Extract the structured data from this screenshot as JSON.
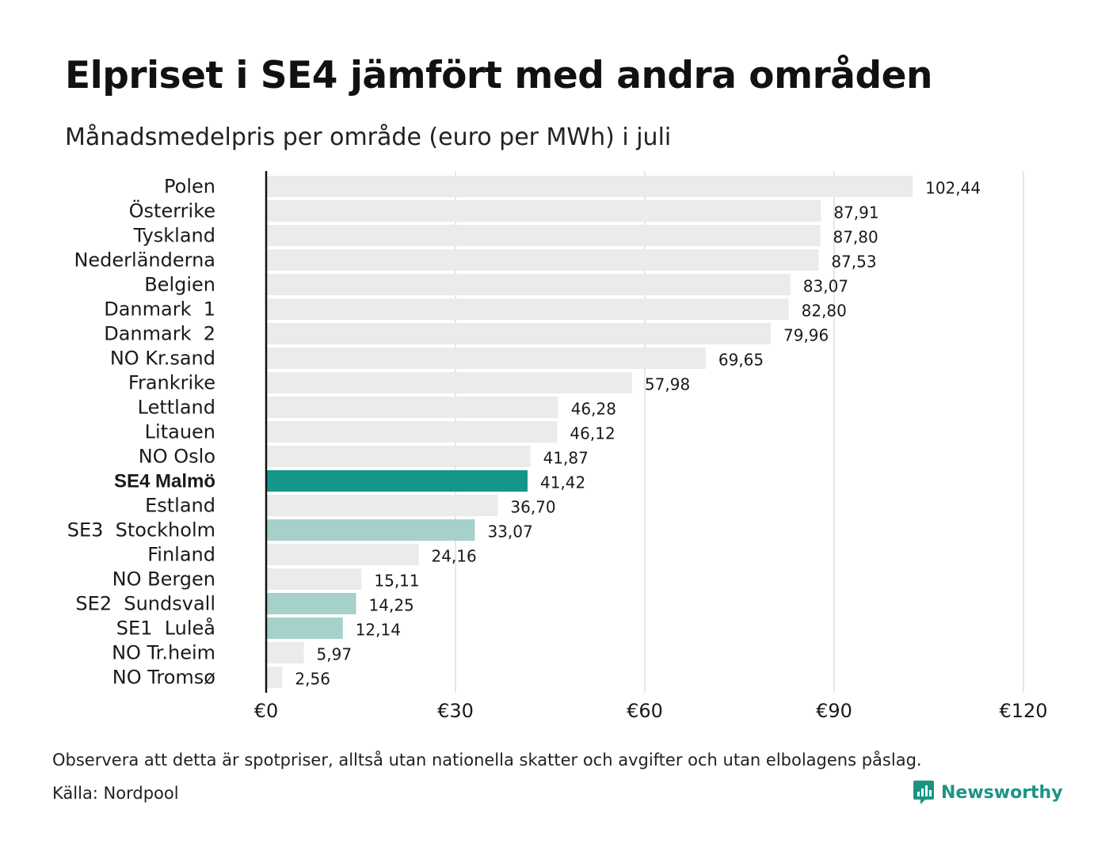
{
  "header": {
    "title": "Elpriset i SE4 jämfört med andra områden",
    "subtitle": "Månadsmedelpris per område (euro per MWh) i juli"
  },
  "chart_data": {
    "type": "bar",
    "orientation": "horizontal",
    "categories": [
      "Polen",
      "Österrike",
      "Tyskland",
      "Nederländerna",
      "Belgien",
      "Danmark  1",
      "Danmark  2",
      "NO Kr.sand",
      "Frankrike",
      "Lettland",
      "Litauen",
      "NO Oslo",
      "SE4 Malmö",
      "Estland",
      "SE3  Stockholm",
      "Finland",
      "NO Bergen",
      "SE2  Sundsvall",
      "SE1  Luleå",
      "NO Tr.heim",
      "NO Tromsø"
    ],
    "values": [
      102.44,
      87.91,
      87.8,
      87.53,
      83.07,
      82.8,
      79.96,
      69.65,
      57.98,
      46.28,
      46.12,
      41.87,
      41.42,
      36.7,
      33.07,
      24.16,
      15.11,
      14.25,
      12.14,
      5.97,
      2.56
    ],
    "value_labels": [
      "102,44",
      "87,91",
      "87,80",
      "87,53",
      "83,07",
      "82,80",
      "79,96",
      "69,65",
      "57,98",
      "46,28",
      "46,12",
      "41,87",
      "41,42",
      "36,70",
      "33,07",
      "24,16",
      "15,11",
      "14,25",
      "12,14",
      "5,97",
      "2,56"
    ],
    "highlight": "SE4 Malmö",
    "swedish_areas": [
      "SE3  Stockholm",
      "SE2  Sundsvall",
      "SE1  Luleå"
    ],
    "xlim": [
      0,
      120
    ],
    "xticks": [
      0,
      30,
      60,
      90,
      120
    ],
    "xtick_labels": [
      "€0",
      "€30",
      "€60",
      "€90",
      "€120"
    ],
    "grid": "vertical",
    "colors": {
      "default": "#ebebeb",
      "highlight": "#14968a",
      "swedish": "#a6d0ca",
      "grid": "#cccccc",
      "axis": "#111111"
    }
  },
  "footer": {
    "note": "Observera att detta är spotpriser, alltså utan nationella skatter och avgifter och utan elbolagens påslag.",
    "source": "Källa: Nordpool",
    "brand": "Newsworthy",
    "brand_icon": "newsworthy-logo-icon"
  }
}
